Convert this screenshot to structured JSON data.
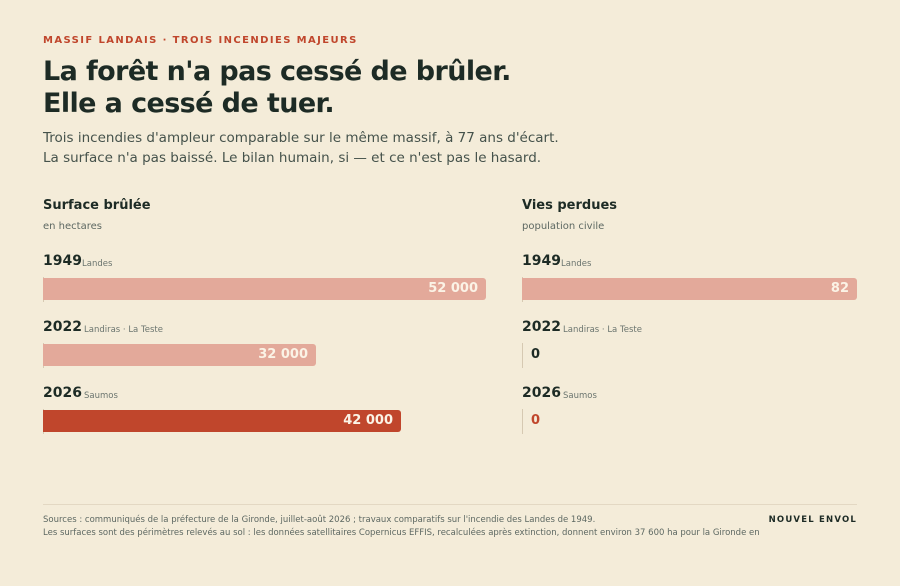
{
  "header": {
    "kicker": "MASSIF LANDAIS · TROIS INCENDIES MAJEURS",
    "headline_line1": "La forêt n'a pas cessé de brûler.",
    "headline_line2": "Elle a cessé de tuer.",
    "dek_line1": "Trois incendies d'ampleur comparable sur le même massif, à 77 ans d'écart.",
    "dek_line2": "La surface n'a pas baissé. Le bilan humain, si — et ce n'est pas le hasard."
  },
  "chart_data": [
    {
      "type": "bar",
      "orientation": "horizontal",
      "title": "Surface brûlée",
      "subtitle": "en hectares",
      "xlim": [
        0,
        52000
      ],
      "categories": [
        "1949",
        "2022",
        "2026"
      ],
      "places": [
        "Landes",
        "Landiras · La Teste",
        "Saumos"
      ],
      "values": [
        52000,
        32000,
        42000
      ],
      "value_labels": [
        "52 000",
        "32 000",
        "42 000"
      ],
      "highlight": [
        false,
        false,
        true
      ]
    },
    {
      "type": "bar",
      "orientation": "horizontal",
      "title": "Vies perdues",
      "subtitle": "population civile",
      "xlim": [
        0,
        82
      ],
      "categories": [
        "1949",
        "2022",
        "2026"
      ],
      "places": [
        "Landes",
        "Landiras · La Teste",
        "Saumos"
      ],
      "values": [
        82,
        0,
        0
      ],
      "value_labels": [
        "82",
        "0",
        "0"
      ],
      "highlight": [
        false,
        false,
        true
      ]
    }
  ],
  "footer": {
    "sources_line1": "Sources : communiqués de la préfecture de la Gironde, juillet-août 2026 ; travaux comparatifs sur l'incendie des Landes de 1949.",
    "sources_line2": "Les surfaces sont des périmètres relevés au sol : les données satellitaires Copernicus EFFIS, recalculées après extinction, donnent environ 37 600 ha pour la Gironde en",
    "brand": "NOUVEL ENVOL"
  },
  "colors": {
    "accent": "#c0462c",
    "bar": "#e3a99a",
    "background": "#f4ecd9",
    "ink": "#1d2b25"
  }
}
